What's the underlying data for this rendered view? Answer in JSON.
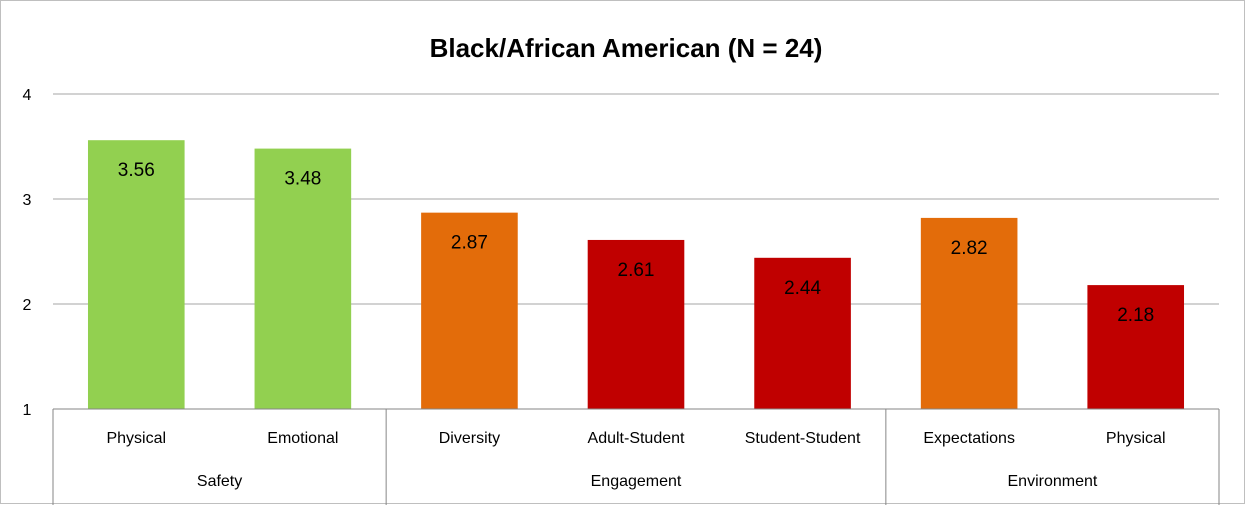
{
  "chart_data": {
    "type": "bar",
    "title": "Black/African American (N = 24)",
    "ylim": [
      1,
      4
    ],
    "yticks": [
      "1",
      "2",
      "3",
      "4"
    ],
    "grid": true,
    "bars": [
      {
        "category": "Physical",
        "group": "Safety",
        "value": 3.56,
        "label": "3.56",
        "color": "#92d050"
      },
      {
        "category": "Emotional",
        "group": "Safety",
        "value": 3.48,
        "label": "3.48",
        "color": "#92d050"
      },
      {
        "category": "Diversity",
        "group": "Engagement",
        "value": 2.87,
        "label": "2.87",
        "color": "#e36c0a"
      },
      {
        "category": "Adult-Student",
        "group": "Engagement",
        "value": 2.61,
        "label": "2.61",
        "color": "#c00000"
      },
      {
        "category": "Student-Student",
        "group": "Engagement",
        "value": 2.44,
        "label": "2.44",
        "color": "#c00000"
      },
      {
        "category": "Expectations",
        "group": "Environment",
        "value": 2.82,
        "label": "2.82",
        "color": "#e36c0a"
      },
      {
        "category": "Physical",
        "group": "Environment",
        "value": 2.18,
        "label": "2.18",
        "color": "#c00000"
      }
    ],
    "groups": [
      {
        "name": "Safety",
        "count": 2
      },
      {
        "name": "Engagement",
        "count": 3
      },
      {
        "name": "Environment",
        "count": 2
      }
    ]
  }
}
